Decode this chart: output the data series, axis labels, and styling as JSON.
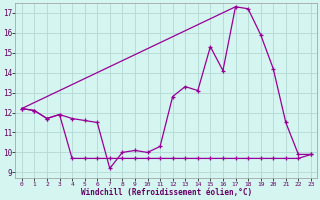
{
  "xlabel": "Windchill (Refroidissement éolien,°C)",
  "bg_color": "#d4f5f0",
  "line_color": "#990099",
  "grid_color": "#b8ddd8",
  "ylim": [
    8.7,
    17.5
  ],
  "xlim": [
    -0.5,
    23.5
  ],
  "yticks": [
    9,
    10,
    11,
    12,
    13,
    14,
    15,
    16,
    17
  ],
  "xticks": [
    0,
    1,
    2,
    3,
    4,
    5,
    6,
    7,
    8,
    9,
    10,
    11,
    12,
    13,
    14,
    15,
    16,
    17,
    18,
    19,
    20,
    21,
    22,
    23
  ],
  "line1_x": [
    0,
    1,
    2,
    3,
    4,
    5,
    6,
    7,
    8,
    9,
    10,
    11,
    12,
    13,
    14,
    15,
    16,
    17,
    18,
    19,
    20,
    21,
    22,
    23
  ],
  "line1_y": [
    12.2,
    12.1,
    11.7,
    11.9,
    9.7,
    9.7,
    9.7,
    9.7,
    9.7,
    9.7,
    9.7,
    9.7,
    9.7,
    9.7,
    9.7,
    9.7,
    9.7,
    9.7,
    9.7,
    9.7,
    9.7,
    9.7,
    9.7,
    9.9
  ],
  "line2_x": [
    0,
    1,
    2,
    3,
    4,
    5,
    6,
    7,
    8,
    9,
    10,
    11,
    12,
    13,
    14,
    15,
    16,
    17,
    18,
    19,
    20,
    21,
    22,
    23
  ],
  "line2_y": [
    12.2,
    12.1,
    11.7,
    11.9,
    11.7,
    11.6,
    11.5,
    9.2,
    10.0,
    10.1,
    10.0,
    10.3,
    12.8,
    13.3,
    13.1,
    15.3,
    14.1,
    17.3,
    17.2,
    15.9,
    14.2,
    11.5,
    9.9,
    9.9
  ],
  "line3_x": [
    0,
    17
  ],
  "line3_y": [
    12.2,
    17.3
  ]
}
